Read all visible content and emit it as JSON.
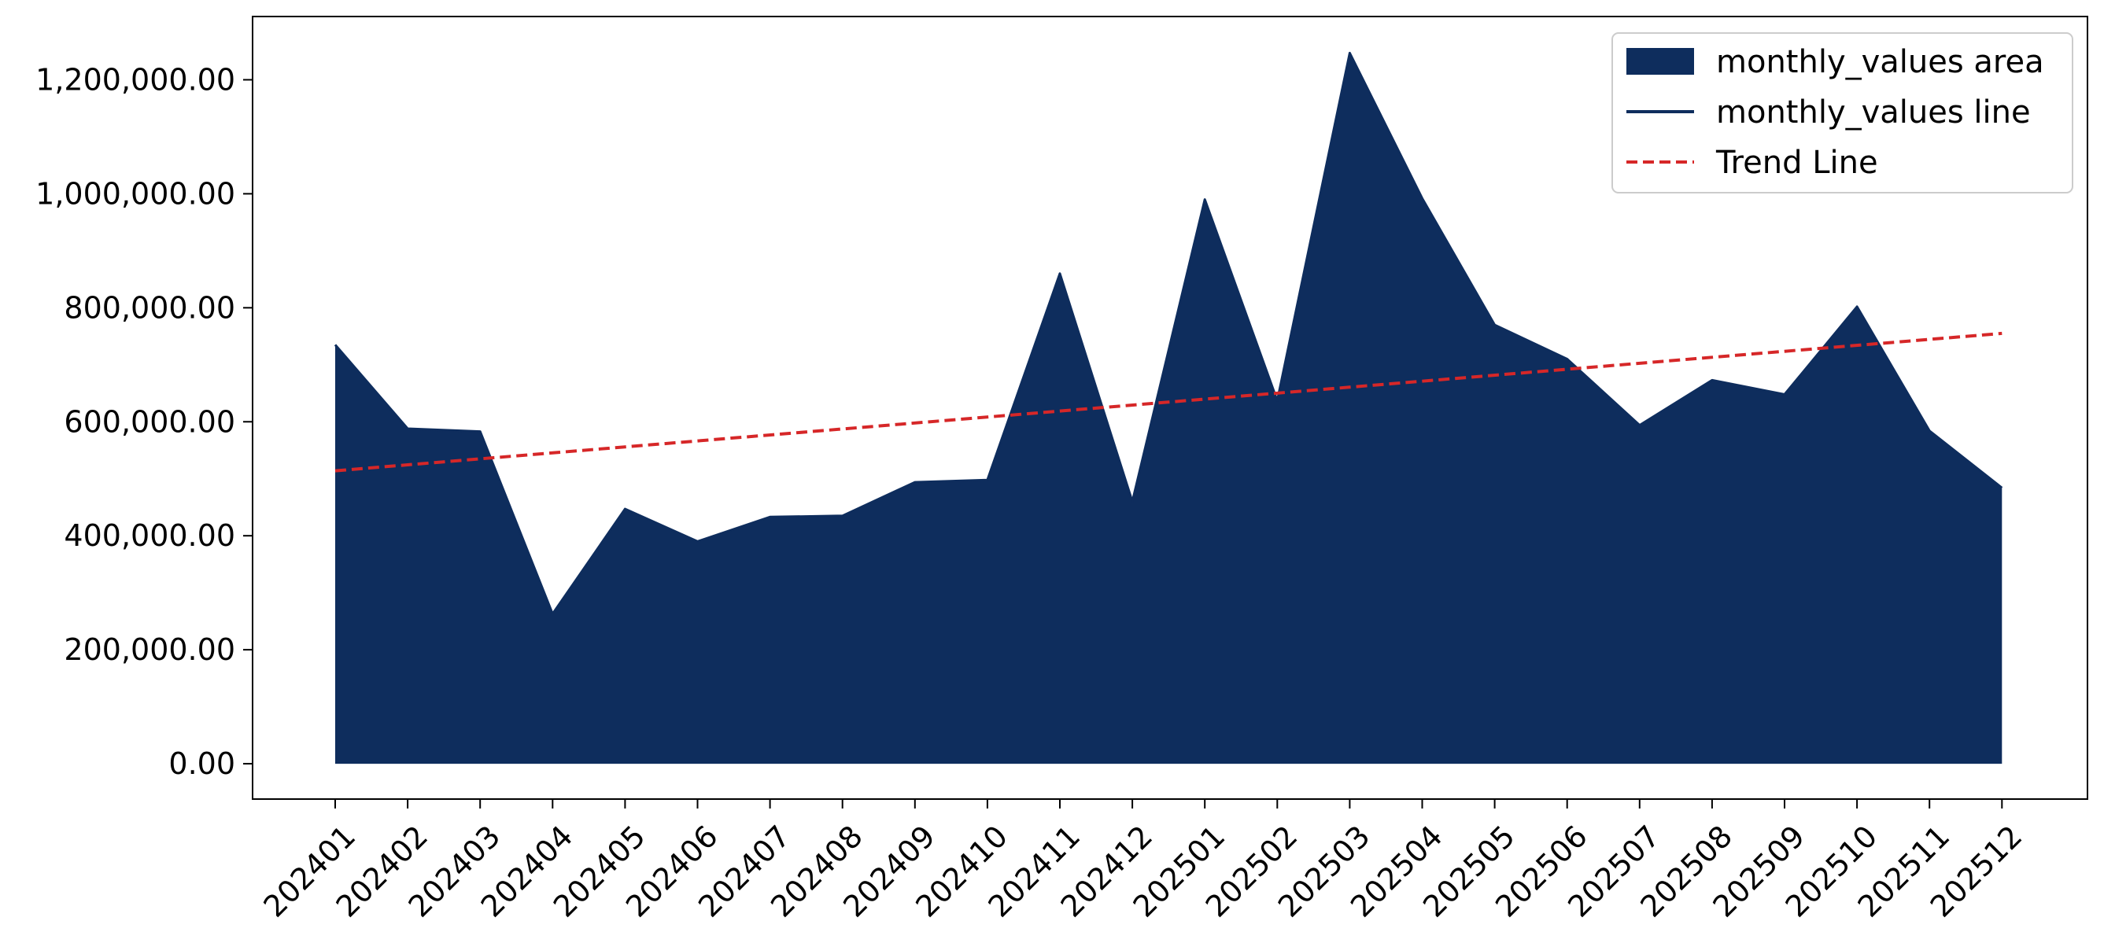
{
  "chart_data": {
    "type": "area",
    "title": "",
    "xlabel": "",
    "ylabel": "",
    "categories": [
      "202401",
      "202402",
      "202403",
      "202404",
      "202405",
      "202406",
      "202407",
      "202408",
      "202409",
      "202410",
      "202411",
      "202412",
      "202501",
      "202502",
      "202503",
      "202504",
      "202505",
      "202506",
      "202507",
      "202508",
      "202509",
      "202510",
      "202511",
      "202512"
    ],
    "series": [
      {
        "name": "monthly_values area",
        "kind": "area",
        "color": "#0e2d5d",
        "values": [
          735000,
          588000,
          583000,
          263000,
          447000,
          390000,
          433000,
          435000,
          494000,
          498000,
          860000,
          460000,
          990000,
          637000,
          1247000,
          992000,
          770000,
          710000,
          594000,
          673000,
          648000,
          802000,
          584000,
          484000
        ]
      },
      {
        "name": "monthly_values line",
        "kind": "line",
        "color": "#0e2d5d",
        "values": [
          735000,
          588000,
          583000,
          263000,
          447000,
          390000,
          433000,
          435000,
          494000,
          498000,
          860000,
          460000,
          990000,
          637000,
          1247000,
          992000,
          770000,
          710000,
          594000,
          673000,
          648000,
          802000,
          584000,
          484000
        ]
      },
      {
        "name": "Trend Line",
        "kind": "trend",
        "color": "#d62728",
        "start": 514000,
        "end": 755000
      }
    ],
    "y_ticks": [
      {
        "value": 0,
        "label": "0.00"
      },
      {
        "value": 200000,
        "label": "200,000.00"
      },
      {
        "value": 400000,
        "label": "400,000.00"
      },
      {
        "value": 600000,
        "label": "600,000.00"
      },
      {
        "value": 800000,
        "label": "800,000.00"
      },
      {
        "value": 1000000,
        "label": "1,000,000.00"
      },
      {
        "value": 1200000,
        "label": "1,200,000.00"
      }
    ],
    "ylim": [
      -62000,
      1311000
    ],
    "grid": false,
    "legend_position": "top-right"
  }
}
